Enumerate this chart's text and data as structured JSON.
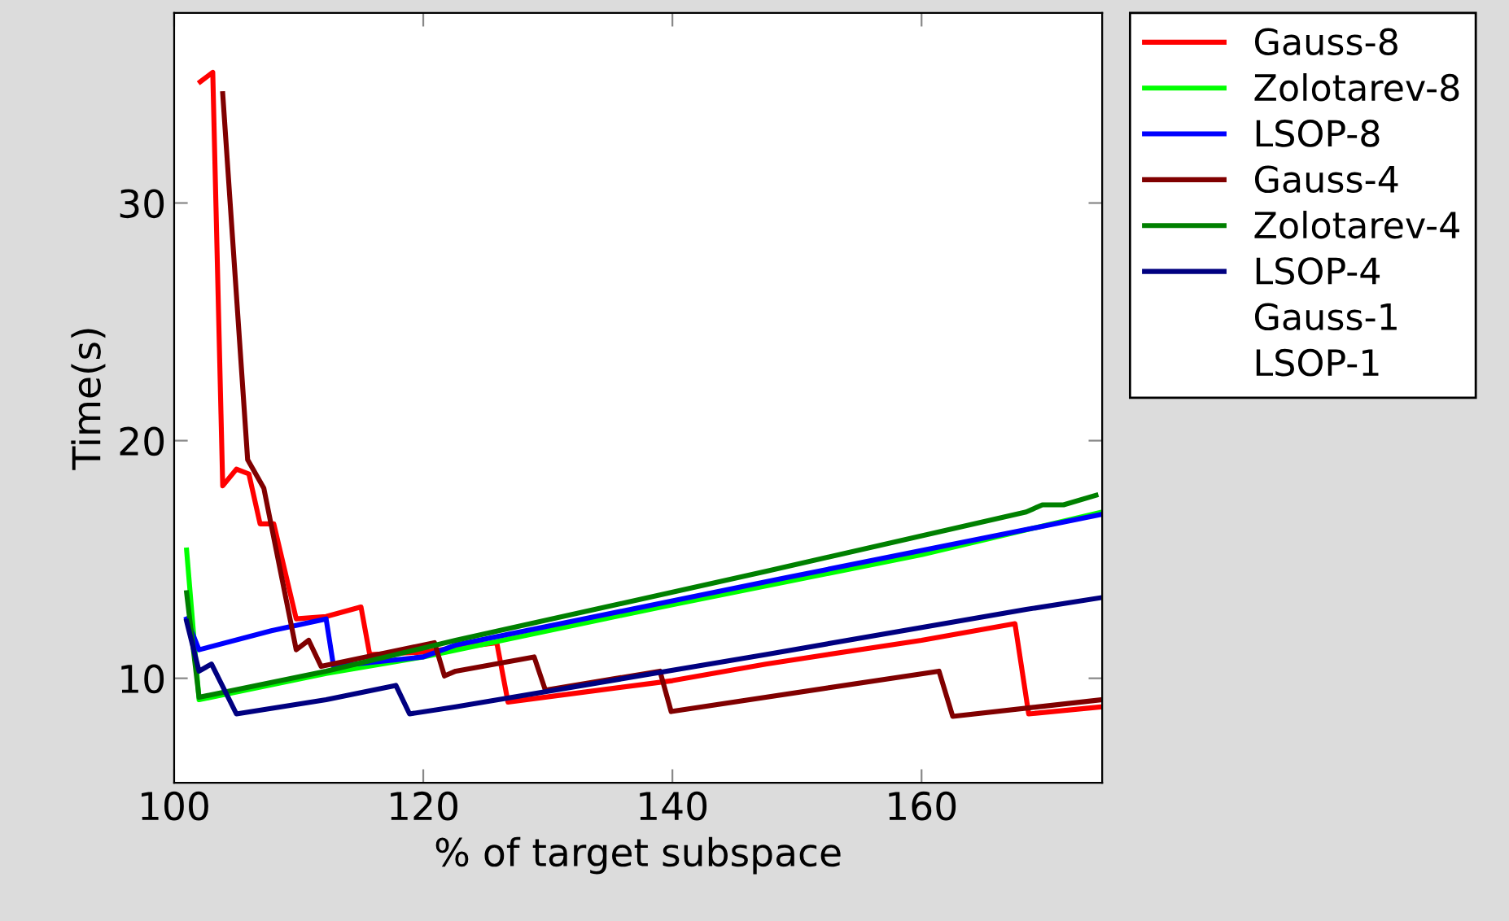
{
  "chart_data": {
    "type": "line",
    "xlabel": "% of target subspace",
    "ylabel": "Time(s)",
    "xlim": [
      100,
      174.5
    ],
    "ylim": [
      5.6,
      38
    ],
    "xticks": [
      100,
      120,
      140,
      160
    ],
    "yticks": [
      10,
      20,
      30
    ],
    "grid": false,
    "legend": "right",
    "marker": "none",
    "line_style": "solid",
    "series": [
      {
        "name": "Gauss-8",
        "color": "#ff0000",
        "x": [
          102.1,
          103.1,
          103.9,
          105,
          106,
          106.9,
          108,
          109.8,
          112.2,
          115,
          115.7,
          120,
          125.9,
          126.8,
          140,
          147.5,
          160,
          167.5,
          168.6,
          174.5
        ],
        "values": [
          35.1,
          35.5,
          18.1,
          18.8,
          18.6,
          16.5,
          16.5,
          12.5,
          12.6,
          13,
          11,
          11.1,
          11.5,
          9,
          9.9,
          10.6,
          11.6,
          12.3,
          8.5,
          8.8
        ]
      },
      {
        "name": "Zolotarev-8",
        "color": "#00ff00",
        "x": [
          101,
          102,
          112.2,
          120,
          140,
          160,
          174.5
        ],
        "values": [
          15.4,
          9.1,
          10.2,
          10.9,
          13.1,
          15.2,
          17
        ]
      },
      {
        "name": "LSOP-8",
        "color": "#0000ff",
        "x": [
          101,
          102,
          107.8,
          112.2,
          112.8,
          120,
          122.6,
          148.8,
          174.5
        ],
        "values": [
          12.5,
          11.2,
          12,
          12.5,
          10.5,
          10.9,
          11.4,
          14.2,
          16.9
        ]
      },
      {
        "name": "Gauss-4",
        "color": "#800000",
        "x": [
          103.9,
          105.9,
          107.2,
          109.8,
          110.8,
          111.8,
          120.9,
          121.7,
          122.6,
          128.9,
          129.8,
          139,
          139.9,
          161.4,
          162.5,
          174.5
        ],
        "values": [
          34.6,
          19.2,
          18,
          11.2,
          11.6,
          10.5,
          11.5,
          10.1,
          10.3,
          10.9,
          9.5,
          10.3,
          8.6,
          10.3,
          8.4,
          9.1
        ]
      },
      {
        "name": "Zolotarev-4",
        "color": "#008000",
        "x": [
          101,
          102,
          112.2,
          122.6,
          147.5,
          168.4,
          169.7,
          171.4,
          174
        ],
        "values": [
          13.6,
          9.2,
          10.3,
          11.6,
          14.5,
          17,
          17.3,
          17.3,
          17.7
        ]
      },
      {
        "name": "LSOP-4",
        "color": "#000080",
        "x": [
          101,
          102,
          103,
          105,
          112.2,
          117.8,
          118.9,
          122.6,
          147.5,
          168.4,
          174.5
        ],
        "values": [
          12.4,
          10.3,
          10.6,
          8.5,
          9.1,
          9.7,
          8.5,
          8.8,
          11,
          12.9,
          13.4
        ]
      },
      {
        "name": "Gauss-1"
      },
      {
        "name": "LSOP-1"
      }
    ]
  }
}
